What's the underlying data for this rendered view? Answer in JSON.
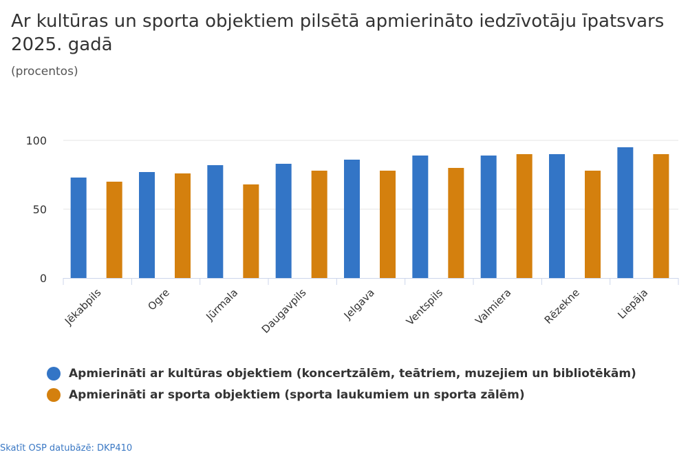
{
  "title": "Ar kultūras un sporta objektiem pilsētā apmierināto iedzīvotāju īpatsvars 2025. gadā",
  "subtitle": "(procentos)",
  "source_link": "Skatīt OSP datubāzē: DKP410",
  "chart_data": {
    "type": "bar",
    "categories": [
      "Jēkabpils",
      "Ogre",
      "Jūrmala",
      "Daugavpils",
      "Jelgava",
      "Ventspils",
      "Valmiera",
      "Rēzekne",
      "Liepāja"
    ],
    "series": [
      {
        "name": "Apmierināti ar kultūras objektiem (koncertzālēm, teātriem, muzejiem un bibliotēkām)",
        "color": "#3375c6",
        "values": [
          73,
          77,
          82,
          83,
          86,
          89,
          89,
          90,
          95
        ]
      },
      {
        "name": "Apmierināti ar sporta objektiem (sporta laukumiem un sporta zālēm)",
        "color": "#d4800e",
        "values": [
          70,
          76,
          68,
          78,
          78,
          80,
          90,
          78,
          90
        ]
      }
    ],
    "ylim": [
      0,
      100
    ],
    "yticks": [
      0,
      50,
      100
    ],
    "legend": "bottom"
  }
}
